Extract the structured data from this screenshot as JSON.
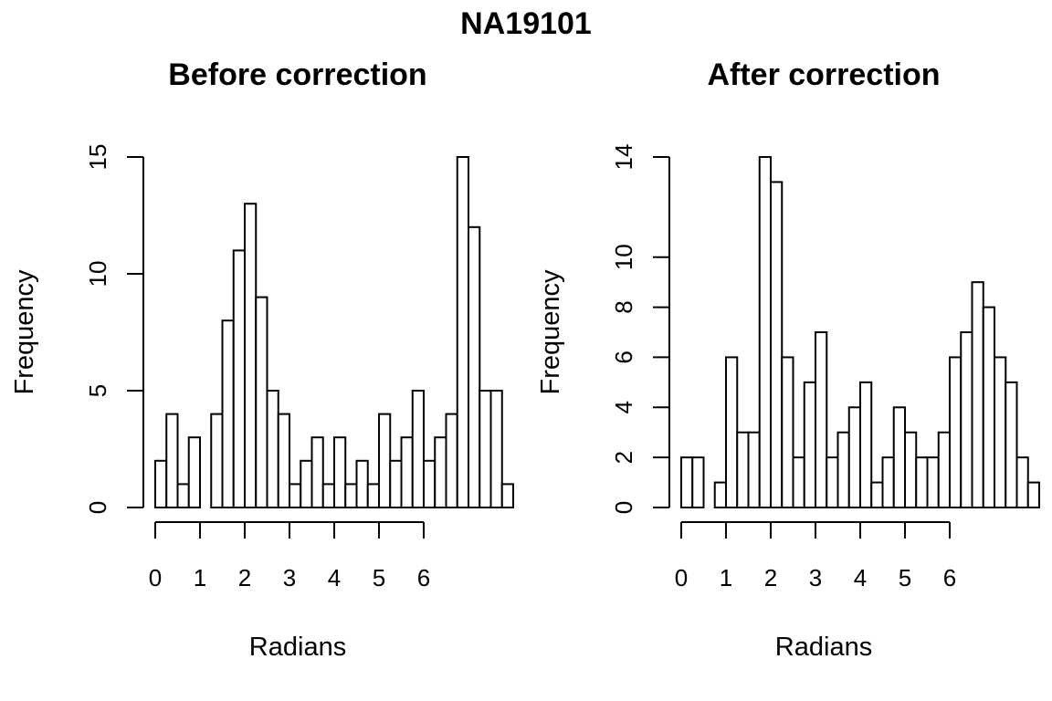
{
  "figure_title": "NA19101",
  "chart_data": [
    {
      "type": "bar",
      "title": "Before correction",
      "xlabel": "Radians",
      "ylabel": "Frequency",
      "bin_width": 0.25,
      "bin_start": 0,
      "values": [
        2,
        4,
        1,
        3,
        0,
        4,
        8,
        11,
        13,
        9,
        5,
        4,
        1,
        2,
        3,
        1,
        3,
        1,
        2,
        1,
        4,
        2,
        3,
        5,
        2,
        3,
        4,
        15,
        12,
        5,
        5,
        1
      ],
      "xlim": [
        0,
        6
      ],
      "ylim": [
        0,
        15
      ],
      "x_ticks": [
        0,
        1,
        2,
        3,
        4,
        5,
        6
      ],
      "y_ticks": [
        0,
        5,
        10,
        15
      ],
      "grid": false
    },
    {
      "type": "bar",
      "title": "After correction",
      "xlabel": "Radians",
      "ylabel": "Frequency",
      "bin_width": 0.25,
      "bin_start": 0,
      "values": [
        2,
        2,
        0,
        1,
        6,
        3,
        3,
        14,
        13,
        6,
        2,
        5,
        7,
        2,
        3,
        4,
        5,
        1,
        2,
        4,
        3,
        2,
        2,
        3,
        6,
        7,
        9,
        8,
        6,
        5,
        2,
        1
      ],
      "xlim": [
        0,
        6
      ],
      "ylim": [
        0,
        14
      ],
      "x_ticks": [
        0,
        1,
        2,
        3,
        4,
        5,
        6
      ],
      "y_ticks": [
        0,
        2,
        4,
        6,
        8,
        10,
        14
      ],
      "grid": false
    }
  ]
}
